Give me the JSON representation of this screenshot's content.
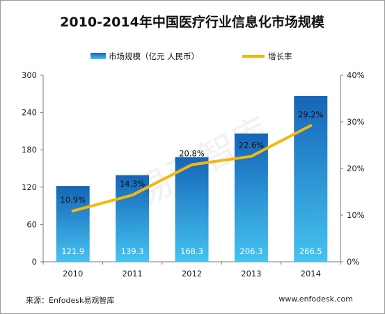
{
  "chart_data": {
    "type": "bar",
    "title": "2010-2014年中国医疗行业信息化市场规模",
    "categories": [
      "2010",
      "2011",
      "2012",
      "2013",
      "2014"
    ],
    "series": [
      {
        "name": "市场规模（亿元 人民币）",
        "type": "bar",
        "axis": "left",
        "values": [
          121.9,
          139.3,
          168.3,
          206.3,
          266.5
        ],
        "labels": [
          "121.9",
          "139.3",
          "168.3",
          "206.3",
          "266.5"
        ]
      },
      {
        "name": "增长率",
        "type": "line",
        "axis": "right",
        "values": [
          10.9,
          14.3,
          20.8,
          22.6,
          29.2
        ],
        "labels": [
          "10.9%",
          "14.3%",
          "20.8%",
          "22.6%",
          "29.2%"
        ]
      }
    ],
    "y_left": {
      "min": 0,
      "max": 300,
      "ticks": [
        "0",
        "60",
        "120",
        "180",
        "240",
        "300"
      ]
    },
    "y_right": {
      "min": 0,
      "max": 40,
      "unit": "%",
      "ticks": [
        "0%",
        "10%",
        "20%",
        "30%",
        "40%"
      ]
    },
    "legend_position": "top",
    "grid": false,
    "colors": {
      "bar_top": "#1565b8",
      "bar_bottom": "#45c3f0",
      "line": "#f6b60c"
    }
  },
  "watermark": "易观智库",
  "footer": {
    "source": "来源：Enfodesk易观智库",
    "url": "www.enfodesk.com"
  }
}
